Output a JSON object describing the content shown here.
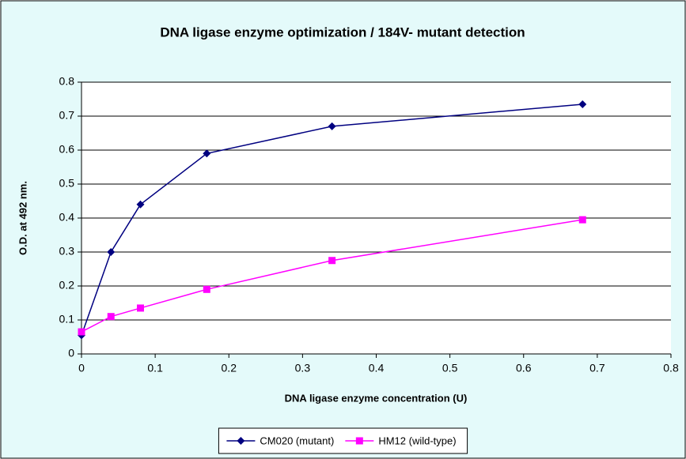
{
  "chart_data": {
    "type": "line",
    "title": "DNA ligase enzyme optimization / 184V- mutant detection",
    "x_label": "DNA ligase enzyme concentration (U)",
    "y_label": "O.D. at 492 nm.",
    "x": [
      0,
      0.04,
      0.08,
      0.17,
      0.34,
      0.68
    ],
    "series": [
      {
        "name": "CM020 (mutant)",
        "color": "#000080",
        "marker": "diamond",
        "values": [
          0.055,
          0.3,
          0.44,
          0.59,
          0.67,
          0.735
        ]
      },
      {
        "name": "HM12 (wild-type)",
        "color": "#ff00ff",
        "marker": "square",
        "values": [
          0.065,
          0.11,
          0.135,
          0.19,
          0.275,
          0.395
        ]
      }
    ],
    "xlim": [
      0,
      0.8
    ],
    "xticks": [
      0,
      0.1,
      0.2,
      0.3,
      0.4,
      0.5,
      0.6,
      0.7,
      0.8
    ],
    "ylim": [
      0,
      0.8
    ],
    "yticks": [
      0,
      0.1,
      0.2,
      0.3,
      0.4,
      0.5,
      0.6,
      0.7,
      0.8
    ],
    "grid": true,
    "legend": "bottom"
  }
}
